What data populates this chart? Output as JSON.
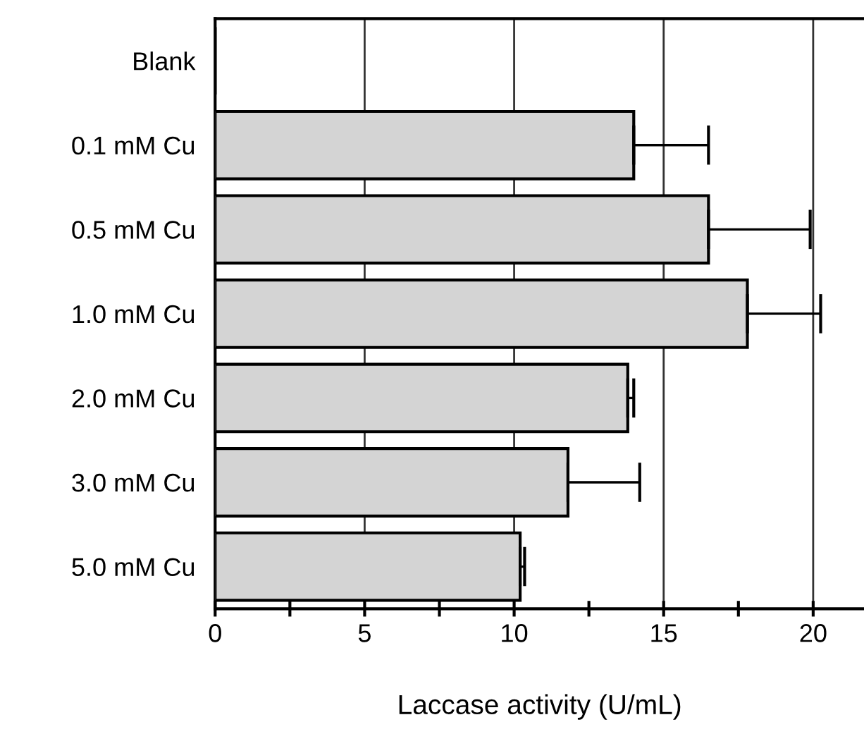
{
  "chart_data": {
    "type": "bar",
    "orientation": "horizontal",
    "xlabel": "Laccase activity (U/mL)",
    "categories": [
      "Blank",
      "0.1 mM Cu",
      "0.5 mM Cu",
      "1.0 mM Cu",
      "2.0 mM Cu",
      "3.0 mM Cu",
      "5.0 mM Cu"
    ],
    "values": [
      0,
      14.0,
      16.5,
      17.8,
      13.8,
      11.8,
      10.2
    ],
    "errors": [
      null,
      [
        14.0,
        16.5
      ],
      [
        16.5,
        19.9
      ],
      [
        17.8,
        20.25
      ],
      [
        13.8,
        14.0
      ],
      [
        11.8,
        14.2
      ],
      [
        10.2,
        10.35
      ]
    ],
    "color": "#d4d4d4",
    "xlim": [
      0,
      21.7
    ],
    "xticks": [
      0,
      {
        "value": 2.5,
        "label": null
      },
      5,
      {
        "value": 7.5,
        "label": null
      },
      10,
      {
        "value": 12.5,
        "label": null
      },
      15,
      {
        "value": 17.5,
        "label": null
      },
      20
    ],
    "grid": "x"
  }
}
